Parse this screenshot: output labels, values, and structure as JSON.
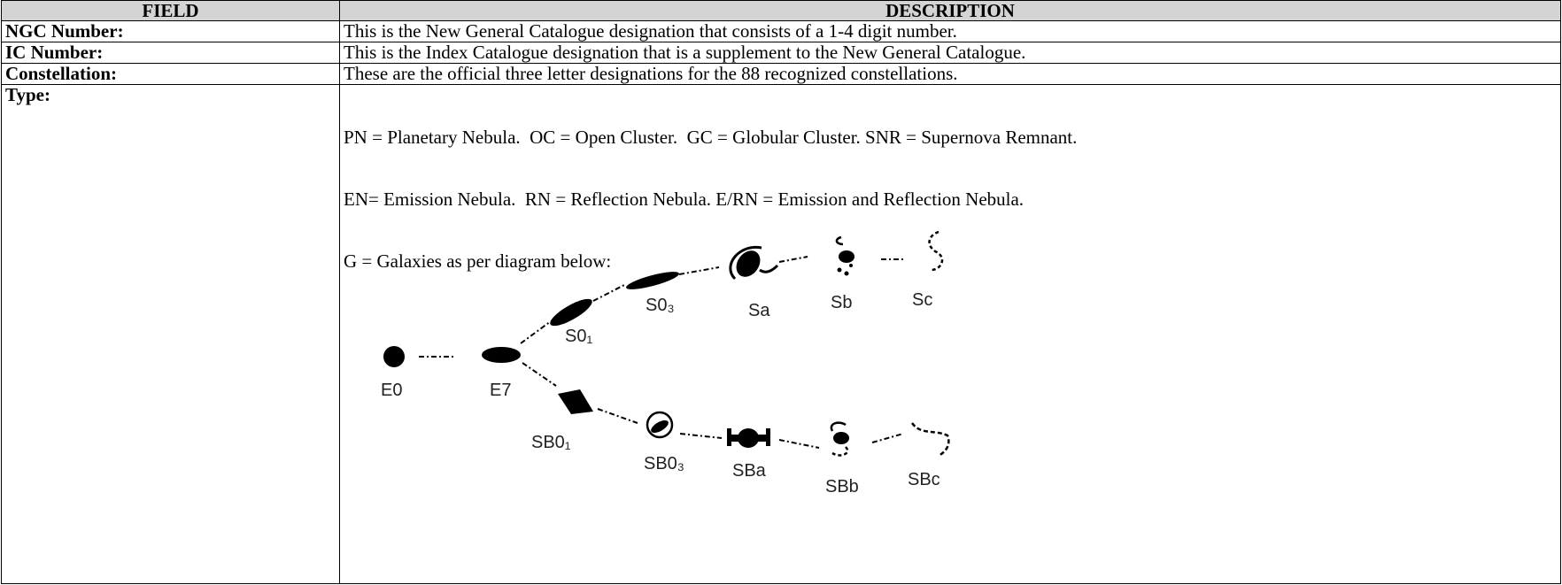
{
  "header": {
    "field": "FIELD",
    "description": "DESCRIPTION"
  },
  "rows": [
    {
      "field": "NGC Number:",
      "description": [
        "This is the New General Catalogue designation that consists of a 1-4 digit number."
      ]
    },
    {
      "field": "IC Number:",
      "description": [
        "This is the Index Catalogue designation that is a supplement to the New General Catalogue."
      ]
    },
    {
      "field": "Constellation:",
      "description": [
        "These are the official three letter designations for the 88 recognized constellations."
      ]
    },
    {
      "field": "Type:",
      "description": [
        "PN = Planetary Nebula.  OC = Open Cluster.  GC = Globular Cluster. SNR = Supernova Remnant.",
        "EN= Emission Nebula.  RN = Reflection Nebula. E/RN = Emission and Reflection Nebula.",
        "G = Galaxies as per diagram below:"
      ]
    }
  ],
  "diagram": {
    "labels": [
      "E0",
      "E7",
      "S0₁",
      "S0₃",
      "Sa",
      "Sb",
      "Sc",
      "SB0₁",
      "SB0₃",
      "SBa",
      "SBb",
      "SBc"
    ]
  }
}
